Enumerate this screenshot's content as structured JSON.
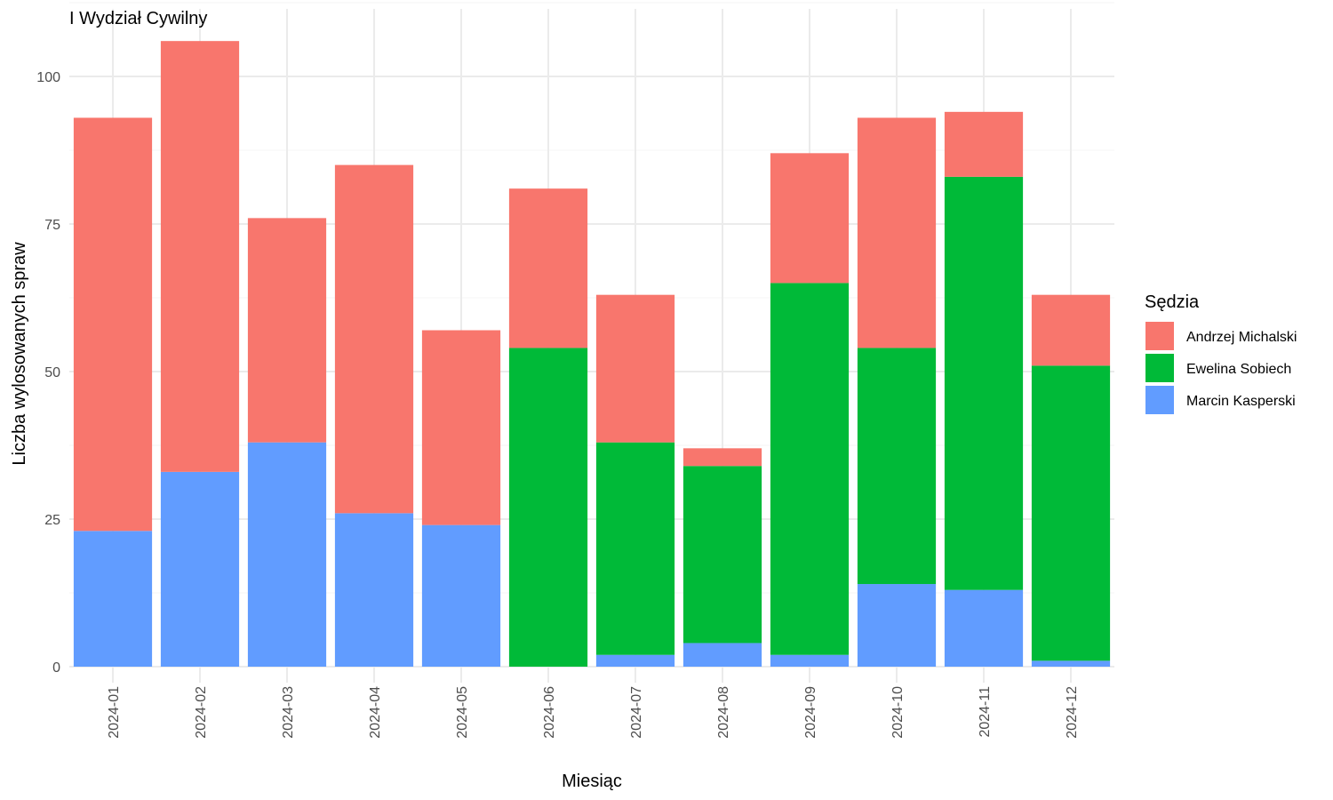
{
  "chart_data": {
    "type": "bar",
    "stacked": true,
    "title": "I Wydział Cywilny",
    "xlabel": "Miesiąc",
    "ylabel": "Liczba wylosowanych spraw",
    "ylim": [
      0,
      110
    ],
    "yticks": [
      0,
      25,
      50,
      75,
      100
    ],
    "grid": true,
    "legend_title": "Sędzia",
    "legend_position": "right",
    "categories": [
      "2024-01",
      "2024-02",
      "2024-03",
      "2024-04",
      "2024-05",
      "2024-06",
      "2024-07",
      "2024-08",
      "2024-09",
      "2024-10",
      "2024-11",
      "2024-12"
    ],
    "series": [
      {
        "name": "Marcin Kasperski",
        "color": "#619CFF",
        "values": [
          23,
          33,
          38,
          26,
          24,
          0,
          2,
          4,
          2,
          14,
          13,
          1
        ]
      },
      {
        "name": "Ewelina Sobiech",
        "color": "#00BA38",
        "values": [
          0,
          0,
          0,
          0,
          0,
          54,
          36,
          30,
          63,
          40,
          70,
          50
        ]
      },
      {
        "name": "Andrzej Michalski",
        "color": "#F8766D",
        "values": [
          70,
          73,
          38,
          59,
          33,
          27,
          25,
          3,
          22,
          39,
          11,
          12
        ]
      }
    ],
    "legend_order": [
      "Andrzej Michalski",
      "Ewelina Sobiech",
      "Marcin Kasperski"
    ]
  }
}
